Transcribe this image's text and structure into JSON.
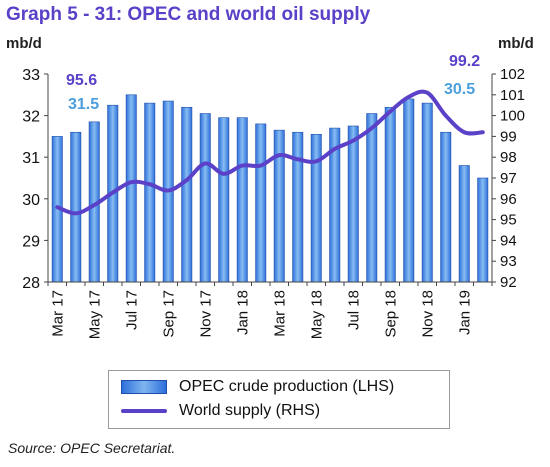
{
  "header": {
    "title": "Graph 5 - 31: OPEC and world oil supply",
    "left_unit": "mb/d",
    "right_unit": "mb/d"
  },
  "colors": {
    "title": "#5b40c8",
    "bar": "#3d86e6",
    "line": "#5b40c8",
    "annotation_bar": "#4a9fdc",
    "annotation_line": "#5b40c8"
  },
  "chart_data": {
    "type": "bar+line",
    "categories": [
      "Mar 17",
      "Apr 17",
      "May 17",
      "Jun 17",
      "Jul 17",
      "Aug 17",
      "Sep 17",
      "Oct 17",
      "Nov 17",
      "Dec 17",
      "Jan 18",
      "Feb 18",
      "Mar 18",
      "Apr 18",
      "May 18",
      "Jun 18",
      "Jul 18",
      "Aug 18",
      "Sep 18",
      "Oct 18",
      "Nov 18",
      "Dec 18",
      "Jan 19",
      "Feb 19"
    ],
    "x_tick_labels": [
      "Mar 17",
      "May 17",
      "Jul 17",
      "Sep 17",
      "Nov 17",
      "Jan 18",
      "Mar 18",
      "May 18",
      "Jul 18",
      "Sep 18",
      "Nov 18",
      "Jan 19"
    ],
    "series": [
      {
        "name": "OPEC crude production (LHS)",
        "type": "bar",
        "axis": "left",
        "values": [
          31.5,
          31.6,
          31.85,
          32.25,
          32.5,
          32.3,
          32.35,
          32.2,
          32.05,
          31.95,
          31.95,
          31.8,
          31.65,
          31.6,
          31.55,
          31.7,
          31.75,
          32.05,
          32.2,
          32.4,
          32.3,
          31.6,
          30.8,
          30.5
        ]
      },
      {
        "name": "World supply (RHS)",
        "type": "line",
        "axis": "right",
        "values": [
          95.6,
          95.3,
          95.7,
          96.3,
          96.8,
          96.7,
          96.4,
          96.9,
          97.7,
          97.2,
          97.6,
          97.6,
          98.1,
          97.9,
          97.8,
          98.4,
          98.8,
          99.4,
          100.2,
          100.9,
          101.1,
          100.0,
          99.2,
          99.2
        ]
      }
    ],
    "left_axis": {
      "label": "mb/d",
      "ylim": [
        28,
        33
      ],
      "ticks": [
        28,
        29,
        30,
        31,
        32,
        33
      ]
    },
    "right_axis": {
      "label": "mb/d",
      "ylim": [
        92,
        102
      ],
      "ticks": [
        92,
        93,
        94,
        95,
        96,
        97,
        98,
        99,
        100,
        101,
        102
      ]
    },
    "annotations": [
      {
        "text": "95.6",
        "series": "World supply (RHS)",
        "category": "Mar 17"
      },
      {
        "text": "31.5",
        "series": "OPEC crude production (LHS)",
        "category": "Mar 17"
      },
      {
        "text": "99.2",
        "series": "World supply (RHS)",
        "category": "Feb 19"
      },
      {
        "text": "30.5",
        "series": "OPEC crude production (LHS)",
        "category": "Feb 19"
      }
    ],
    "grid": false,
    "legend_position": "bottom"
  },
  "legend": {
    "bar_label": "OPEC crude production (LHS)",
    "line_label": "World supply (RHS)"
  },
  "source": "Source: OPEC Secretariat."
}
